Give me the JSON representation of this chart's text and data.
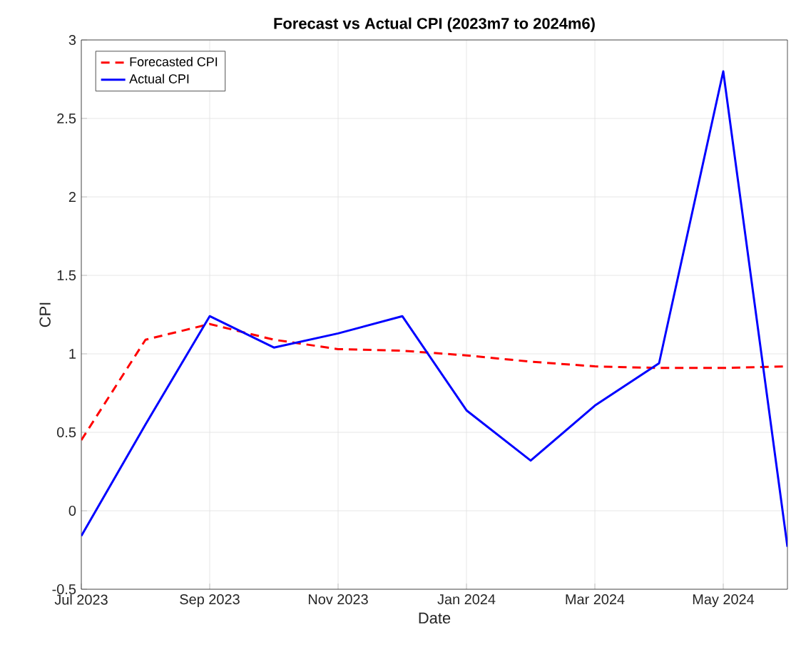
{
  "chart_data": {
    "type": "line",
    "title": "Forecast vs Actual CPI (2023m7 to 2024m6)",
    "xlabel": "Date",
    "ylabel": "CPI",
    "x": [
      "2023-07",
      "2023-08",
      "2023-09",
      "2023-10",
      "2023-11",
      "2023-12",
      "2024-01",
      "2024-02",
      "2024-03",
      "2024-04",
      "2024-05",
      "2024-06"
    ],
    "series": [
      {
        "name": "Forecasted CPI",
        "color": "#ff0000",
        "line_style": "dashed",
        "values": [
          0.45,
          1.09,
          1.19,
          1.09,
          1.03,
          1.02,
          0.99,
          0.95,
          0.92,
          0.91,
          0.91,
          0.92
        ]
      },
      {
        "name": "Actual CPI",
        "color": "#0000ff",
        "line_style": "solid",
        "values": [
          -0.16,
          0.55,
          1.24,
          1.04,
          1.13,
          1.24,
          0.64,
          0.32,
          0.67,
          0.94,
          2.8,
          -0.23
        ]
      }
    ],
    "xlim": [
      "2023-07",
      "2024-06"
    ],
    "xticks": [
      {
        "value": "2023-07",
        "label": "Jul 2023"
      },
      {
        "value": "2023-09",
        "label": "Sep 2023"
      },
      {
        "value": "2023-11",
        "label": "Nov 2023"
      },
      {
        "value": "2024-01",
        "label": "Jan 2024"
      },
      {
        "value": "2024-03",
        "label": "Mar 2024"
      },
      {
        "value": "2024-05",
        "label": "May 2024"
      }
    ],
    "ylim": [
      -0.5,
      3
    ],
    "yticks": [
      -0.5,
      0,
      0.5,
      1,
      1.5,
      2,
      2.5,
      3
    ],
    "grid": true,
    "legend": "top left",
    "marker": "none"
  }
}
